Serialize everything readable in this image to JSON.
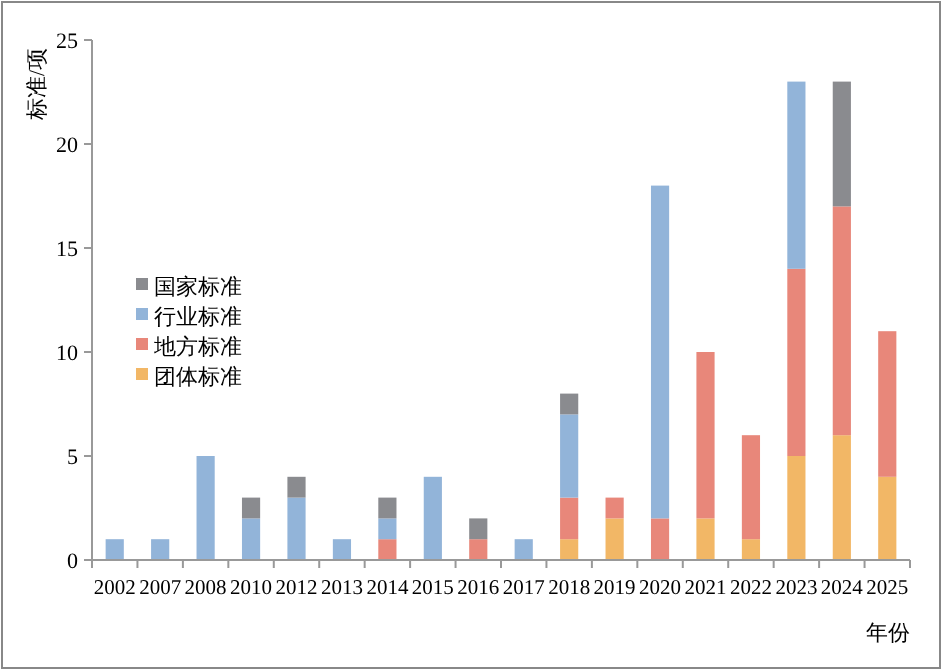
{
  "chart_data": {
    "type": "bar",
    "stacked": true,
    "ylabel": "标准/项",
    "xlabel": "年份",
    "categories": [
      "2002",
      "2007",
      "2008",
      "2010",
      "2012",
      "2013",
      "2014",
      "2015",
      "2016",
      "2017",
      "2018",
      "2019",
      "2020",
      "2021",
      "2022",
      "2023",
      "2024",
      "2025"
    ],
    "series": [
      {
        "name": "团体标准",
        "color": "#f2b766",
        "values": [
          0,
          0,
          0,
          0,
          0,
          0,
          0,
          0,
          0,
          0,
          1,
          2,
          0,
          2,
          1,
          5,
          6,
          4
        ]
      },
      {
        "name": "地方标准",
        "color": "#e8877a",
        "values": [
          0,
          0,
          0,
          0,
          0,
          0,
          1,
          0,
          1,
          0,
          2,
          1,
          2,
          8,
          5,
          9,
          11,
          7
        ]
      },
      {
        "name": "行业标准",
        "color": "#92b4d9",
        "values": [
          1,
          1,
          5,
          2,
          3,
          1,
          1,
          4,
          0,
          1,
          4,
          0,
          16,
          0,
          0,
          9,
          0,
          0
        ]
      },
      {
        "name": "国家标准",
        "color": "#8a8b8f",
        "values": [
          0,
          0,
          0,
          1,
          1,
          0,
          1,
          0,
          1,
          0,
          1,
          0,
          0,
          0,
          0,
          0,
          6,
          0
        ]
      }
    ],
    "ylim": [
      0,
      25
    ],
    "yticks": [
      0,
      5,
      10,
      15,
      20,
      25
    ],
    "legend": "left",
    "grid": false
  }
}
